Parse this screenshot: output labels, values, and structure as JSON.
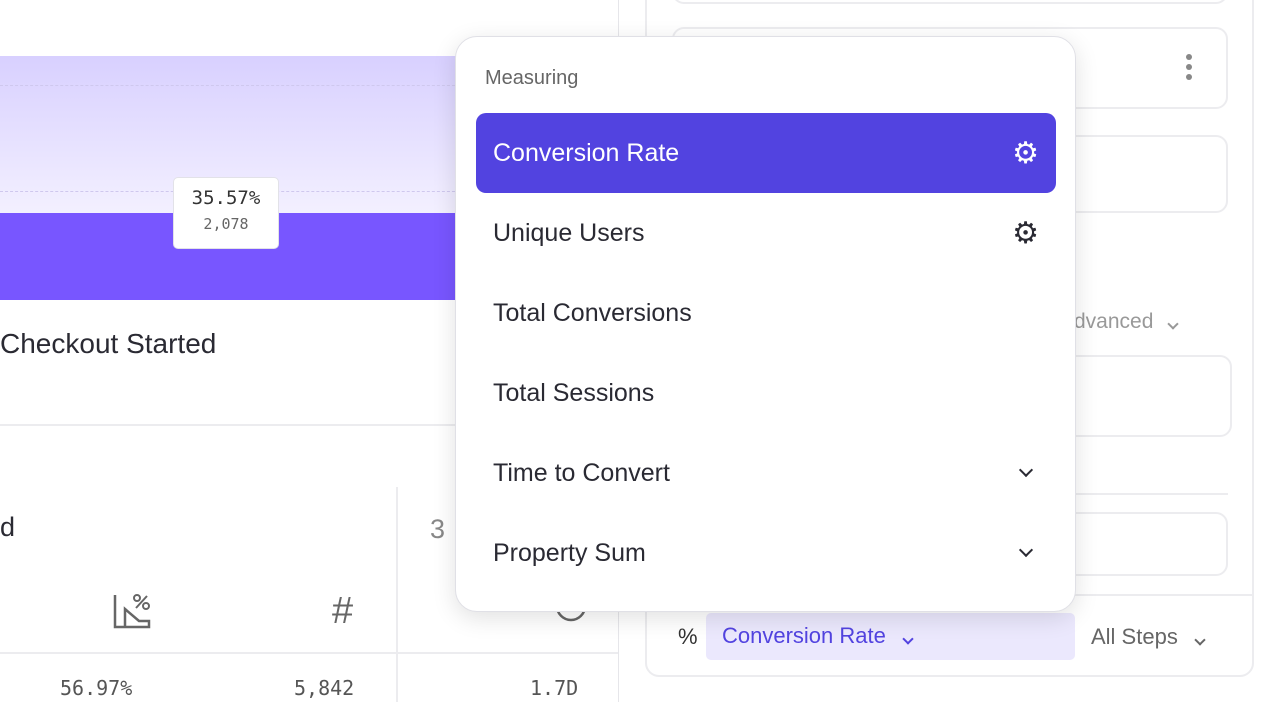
{
  "chart": {
    "tooltip_percent": "35.57%",
    "tooltip_count": "2,078",
    "step_label": "Checkout Started",
    "bar_color": "#7856ff"
  },
  "table": {
    "step_header_partial": "d",
    "next_step_partial": "3",
    "row": {
      "conversion_rate": "56.97%",
      "count": "5,842",
      "time": "1.7D"
    }
  },
  "right_panel": {
    "advanced_label": "dvanced",
    "measure_prefix": "%",
    "measure_value": "Conversion Rate",
    "steps_value": "All Steps"
  },
  "dropdown": {
    "header": "Measuring",
    "items": [
      {
        "label": "Conversion Rate",
        "icon": "gear-icon",
        "selected": true
      },
      {
        "label": "Unique Users",
        "icon": "gear-icon"
      },
      {
        "label": "Total Conversions"
      },
      {
        "label": "Total Sessions"
      },
      {
        "label": "Time to Convert",
        "icon": "chevron-down-icon"
      },
      {
        "label": "Property Sum",
        "icon": "chevron-down-icon"
      }
    ],
    "accent": "#5243e0"
  }
}
